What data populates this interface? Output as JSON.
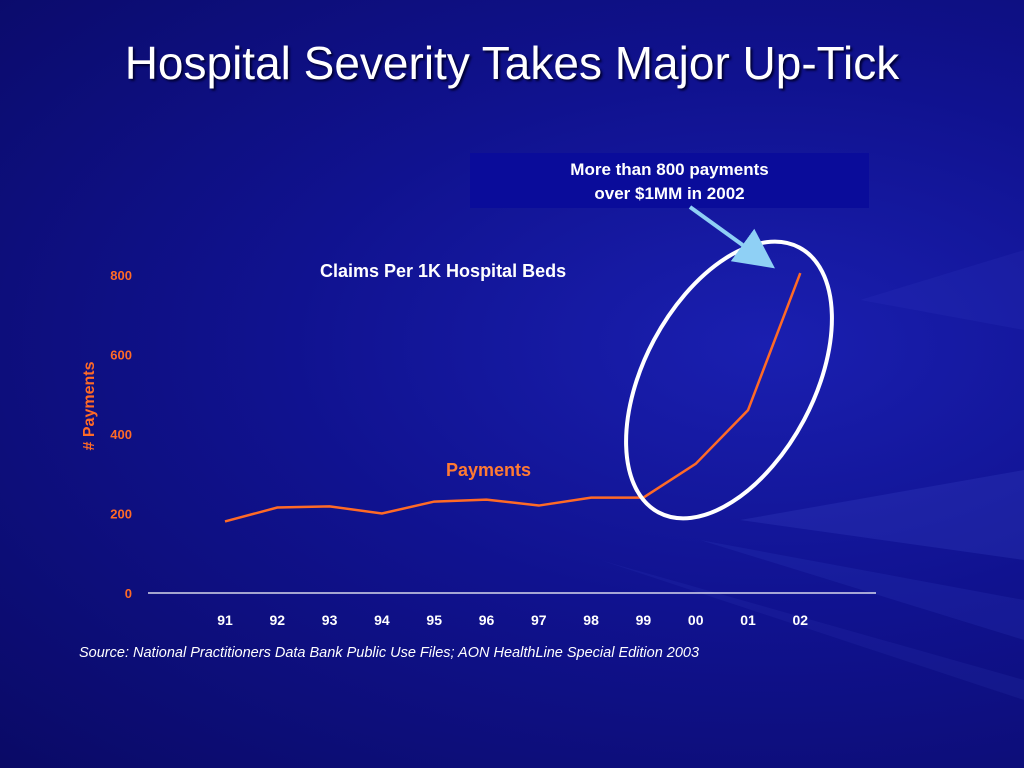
{
  "slide": {
    "title": "Hospital Severity Takes Major Up-Tick",
    "callout_line1": "More than 800 payments",
    "callout_line2": "over $1MM in 2002",
    "source": "Source:  National Practitioners Data Bank Public Use Files; AON HealthLine Special Edition 2003"
  },
  "colors": {
    "series": "#ff6a26",
    "axis_text": "#ff6a26",
    "highlight": "#ffffff",
    "arrow": "#8fd0f5"
  },
  "chart_data": {
    "type": "line",
    "title": "Claims Per 1K Hospital Beds",
    "xlabel": "",
    "ylabel": "# Payments",
    "categories": [
      "91",
      "92",
      "93",
      "94",
      "95",
      "96",
      "97",
      "98",
      "99",
      "00",
      "01",
      "02"
    ],
    "series": [
      {
        "name": "Payments",
        "values": [
          180,
          215,
          218,
          200,
          230,
          235,
          220,
          240,
          240,
          325,
          460,
          805
        ]
      }
    ],
    "ylim": [
      0,
      800
    ],
    "yticks": [
      0,
      200,
      400,
      600,
      800
    ],
    "grid": false,
    "annotation": "More than 800 payments over $1MM in 2002"
  }
}
